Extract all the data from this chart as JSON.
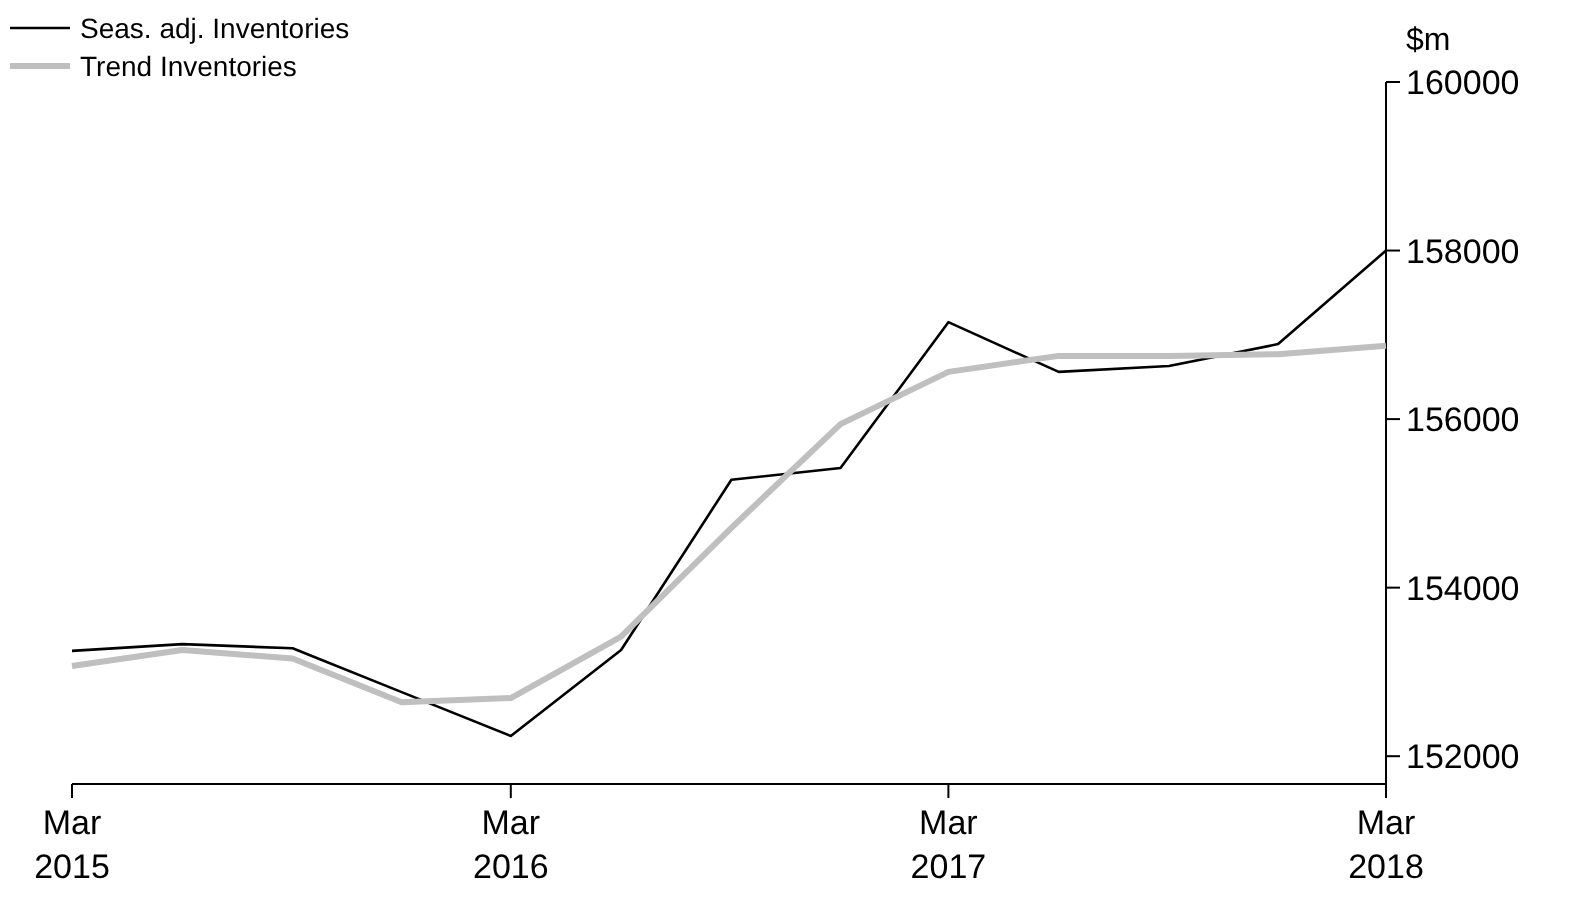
{
  "chart_data": {
    "type": "line",
    "ylabel": "$m",
    "x": [
      "2015-03",
      "2015-06",
      "2015-09",
      "2015-12",
      "2016-03",
      "2016-06",
      "2016-09",
      "2016-12",
      "2017-03",
      "2017-06",
      "2017-09",
      "2017-12",
      "2018-03"
    ],
    "series": [
      {
        "name": "Seas. adj. Inventories",
        "color": "#000000",
        "values": [
          153250,
          153330,
          153280,
          152760,
          152240,
          153260,
          155280,
          155420,
          157150,
          156560,
          156630,
          156890,
          158000
        ]
      },
      {
        "name": "Trend Inventories",
        "color": "#bfbfbf",
        "values": [
          153070,
          153260,
          153160,
          152640,
          152690,
          153420,
          154710,
          155940,
          156560,
          156750,
          156750,
          156770,
          156870
        ]
      }
    ],
    "xlim": [
      "2015-03",
      "2018-03"
    ],
    "xticks": [
      {
        "value": "2015-03",
        "label": "Mar 2015"
      },
      {
        "value": "2016-03",
        "label": "Mar 2016"
      },
      {
        "value": "2017-03",
        "label": "Mar 2017"
      },
      {
        "value": "2018-03",
        "label": "Mar 2018"
      }
    ],
    "ylim": [
      151670,
      160000
    ],
    "yticks": [
      152000,
      154000,
      156000,
      158000,
      160000
    ],
    "grid": false,
    "legend": "top left",
    "marker": "none",
    "line_style": "solid"
  }
}
